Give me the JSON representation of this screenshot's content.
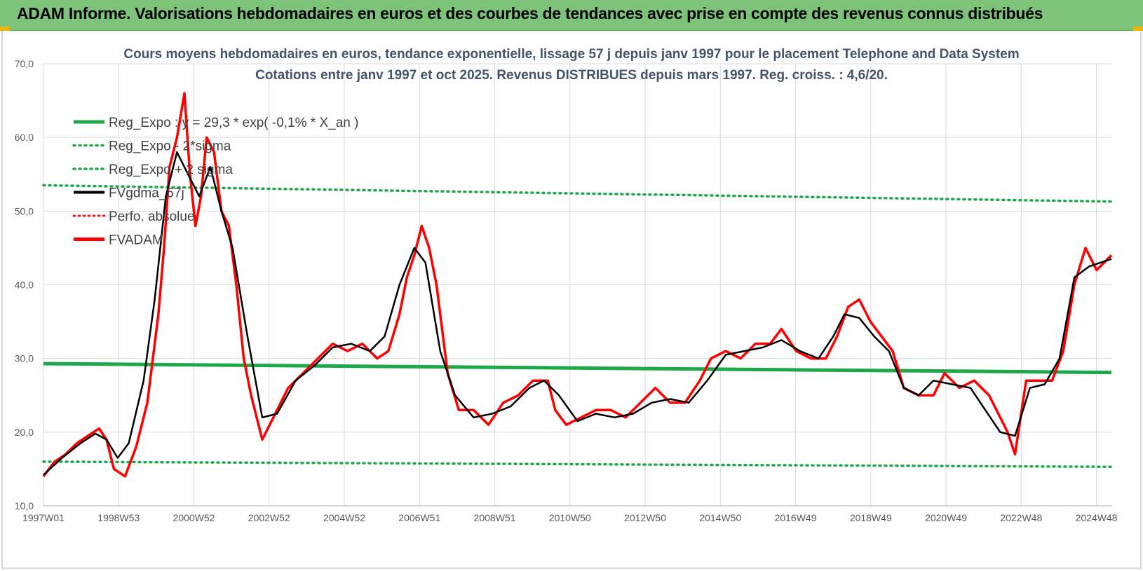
{
  "header": {
    "title": "ADAM Informe. Valorisations hebdomadaires en euros et des courbes de tendances avec prise en compte des revenus connus distribués"
  },
  "colors": {
    "banner": "#7dc47a",
    "reg_expo": "#1fa84a",
    "fvgdma": "#000000",
    "fvadam": "#ff0000",
    "perfo": "#e02020",
    "title_text": "#44546a"
  },
  "chart_data": {
    "type": "line",
    "title_line1": "Cours moyens hebdomadaires en euros, tendance exponentielle, lissage 57 j depuis janv 1997 pour le placement Telephone and Data System",
    "title_line2": "Cotations entre janv 1997 et oct 2025. Revenus DISTRIBUES depuis mars 1997. Reg. croiss. : 4,6/20.",
    "ylim": [
      10,
      70
    ],
    "y_ticks": [
      "10,0",
      "20,0",
      "30,0",
      "40,0",
      "50,0",
      "60,0",
      "70,0"
    ],
    "x_ticks": [
      "1997W01",
      "1998W53",
      "2000W52",
      "2002W52",
      "2004W52",
      "2006W51",
      "2008W51",
      "2010W50",
      "2012W50",
      "2014W50",
      "2016W49",
      "2018W49",
      "2020W49",
      "2022W48",
      "2024W48"
    ],
    "x_range_years": [
      1997.0,
      2025.8
    ],
    "grid": true,
    "legend_position": "top-left",
    "legend": [
      {
        "label": "Reg_Expo : y = 29,3 * exp( -0,1% *  X_an )",
        "style": "solid-green"
      },
      {
        "label": "Reg_Expo - 2*sigma",
        "style": "dotted-green"
      },
      {
        "label": "Reg_Expo + 2 sigma",
        "style": "dotted-green"
      },
      {
        "label": "FVgdma_57j",
        "style": "solid-black"
      },
      {
        "label": "Perfo. absolue",
        "style": "dotted-red"
      },
      {
        "label": "FVADAM",
        "style": "solid-red"
      }
    ],
    "series": [
      {
        "name": "Reg_Expo : y = 29,3 * exp( -0,1% *  X_an )",
        "x": [
          1997.0,
          2025.8
        ],
        "y": [
          29.3,
          28.1
        ]
      },
      {
        "name": "Reg_Expo - 2*sigma",
        "x": [
          1997.0,
          2025.8
        ],
        "y": [
          16.0,
          15.3
        ]
      },
      {
        "name": "Reg_Expo + 2 sigma",
        "x": [
          1997.0,
          2025.8
        ],
        "y": [
          53.5,
          51.3
        ]
      },
      {
        "name": "FVADAM",
        "x": [
          1997.0,
          1997.3,
          1997.6,
          1997.9,
          1998.2,
          1998.5,
          1998.7,
          1998.9,
          1999.2,
          1999.5,
          1999.8,
          1999.95,
          2000.1,
          2000.25,
          2000.4,
          2000.6,
          2000.8,
          2000.95,
          2001.1,
          2001.25,
          2001.4,
          2001.6,
          2001.8,
          2002.0,
          2002.2,
          2002.4,
          2002.6,
          2002.9,
          2003.2,
          2003.6,
          2004.0,
          2004.4,
          2004.8,
          2005.2,
          2005.6,
          2006.0,
          2006.3,
          2006.6,
          2006.8,
          2007.0,
          2007.2,
          2007.4,
          2007.6,
          2007.9,
          2008.2,
          2008.6,
          2009.0,
          2009.4,
          2009.8,
          2010.2,
          2010.6,
          2010.8,
          2011.1,
          2011.5,
          2011.9,
          2012.3,
          2012.7,
          2013.1,
          2013.5,
          2013.9,
          2014.3,
          2014.7,
          2015.0,
          2015.4,
          2015.8,
          2016.2,
          2016.6,
          2016.9,
          2017.3,
          2017.7,
          2018.1,
          2018.4,
          2018.7,
          2019.0,
          2019.3,
          2019.6,
          2019.9,
          2020.2,
          2020.6,
          2021.0,
          2021.3,
          2021.7,
          2022.1,
          2022.5,
          2022.8,
          2023.0,
          2023.2,
          2023.5,
          2023.9,
          2024.2,
          2024.5,
          2024.8,
          2025.1,
          2025.4,
          2025.8
        ],
        "y": [
          14.0,
          16.0,
          17.0,
          18.5,
          19.5,
          20.5,
          19.0,
          15.0,
          14.0,
          18.0,
          24.0,
          30.0,
          36.0,
          45.0,
          56.0,
          60.0,
          66.0,
          55.0,
          48.0,
          52.0,
          60.0,
          58.0,
          50.0,
          48.0,
          40.0,
          30.0,
          25.0,
          19.0,
          22.0,
          26.0,
          28.0,
          30.0,
          32.0,
          31.0,
          32.0,
          30.0,
          31.0,
          36.0,
          41.0,
          44.0,
          48.0,
          45.0,
          40.0,
          28.0,
          23.0,
          23.0,
          21.0,
          24.0,
          25.0,
          27.0,
          27.0,
          23.0,
          21.0,
          22.0,
          23.0,
          23.0,
          22.0,
          24.0,
          26.0,
          24.0,
          24.0,
          27.0,
          30.0,
          31.0,
          30.0,
          32.0,
          32.0,
          34.0,
          31.0,
          30.0,
          30.0,
          33.0,
          37.0,
          38.0,
          35.0,
          33.0,
          31.0,
          26.0,
          25.0,
          25.0,
          28.0,
          26.0,
          27.0,
          25.0,
          22.0,
          20.0,
          17.0,
          27.0,
          27.0,
          27.0,
          31.0,
          40.0,
          45.0,
          42.0,
          44.0
        ]
      },
      {
        "name": "FVgdma_57j",
        "x": [
          1997.0,
          1997.5,
          1998.0,
          1998.4,
          1998.7,
          1999.0,
          1999.3,
          1999.7,
          2000.0,
          2000.3,
          2000.6,
          2000.9,
          2001.2,
          2001.5,
          2001.8,
          2002.1,
          2002.5,
          2002.9,
          2003.3,
          2003.8,
          2004.3,
          2004.8,
          2005.3,
          2005.8,
          2006.2,
          2006.6,
          2007.0,
          2007.3,
          2007.7,
          2008.1,
          2008.6,
          2009.1,
          2009.6,
          2010.1,
          2010.5,
          2010.9,
          2011.4,
          2011.9,
          2012.4,
          2012.9,
          2013.4,
          2013.9,
          2014.4,
          2014.9,
          2015.4,
          2015.9,
          2016.4,
          2016.9,
          2017.4,
          2017.9,
          2018.3,
          2018.6,
          2019.0,
          2019.4,
          2019.8,
          2020.2,
          2020.6,
          2021.0,
          2021.5,
          2022.0,
          2022.4,
          2022.8,
          2023.2,
          2023.6,
          2024.0,
          2024.4,
          2024.8,
          2025.2,
          2025.8
        ],
        "y": [
          14.2,
          16.5,
          18.5,
          19.8,
          19.0,
          16.5,
          18.5,
          27.0,
          38.0,
          52.0,
          58.0,
          55.0,
          52.0,
          56.0,
          50.0,
          45.0,
          33.0,
          22.0,
          22.5,
          27.0,
          29.0,
          31.5,
          32.0,
          31.0,
          33.0,
          40.0,
          45.0,
          43.0,
          31.0,
          25.0,
          22.0,
          22.5,
          23.5,
          26.0,
          27.0,
          25.0,
          21.5,
          22.5,
          22.0,
          22.5,
          24.0,
          24.5,
          24.0,
          27.0,
          30.5,
          31.0,
          31.5,
          32.5,
          31.0,
          30.0,
          33.0,
          36.0,
          35.5,
          33.0,
          31.0,
          26.0,
          25.0,
          27.0,
          26.5,
          26.0,
          23.0,
          20.0,
          19.5,
          26.0,
          26.5,
          30.0,
          41.0,
          42.5,
          43.5
        ]
      }
    ]
  }
}
